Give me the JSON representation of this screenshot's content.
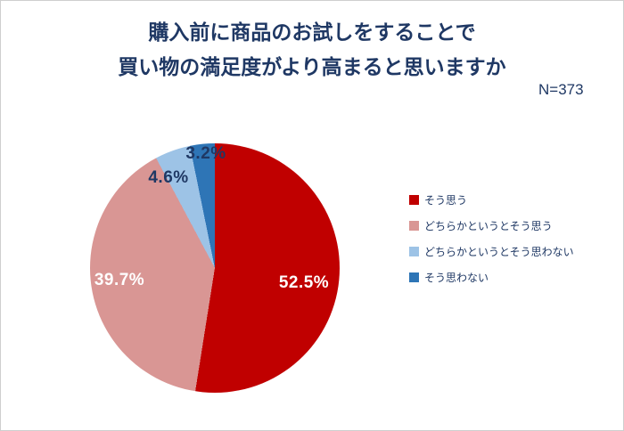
{
  "title": {
    "line1": "購入前に商品のお試しをすることで",
    "line2": "買い物の満足度がより高まると思いますか"
  },
  "sample_size": "N=373",
  "chart_data": {
    "type": "pie",
    "title": "購入前に商品のお試しをすることで買い物の満足度がより高まると思いますか",
    "sample_label": "N=373",
    "n": 373,
    "start_angle_deg": 0,
    "direction": "clockwise",
    "legend_position": "right",
    "slices": [
      {
        "label": "そう思う",
        "value": 52.5,
        "display": "52.5%",
        "color": "#C00000"
      },
      {
        "label": "どちらかというとそう思う",
        "value": 39.7,
        "display": "39.7%",
        "color": "#D99694"
      },
      {
        "label": "どちらかというとそう思わない",
        "value": 4.6,
        "display": "4.6%",
        "color": "#9DC3E6"
      },
      {
        "label": "そう思わない",
        "value": 3.2,
        "display": "3.2%",
        "color": "#2E75B6"
      }
    ]
  }
}
